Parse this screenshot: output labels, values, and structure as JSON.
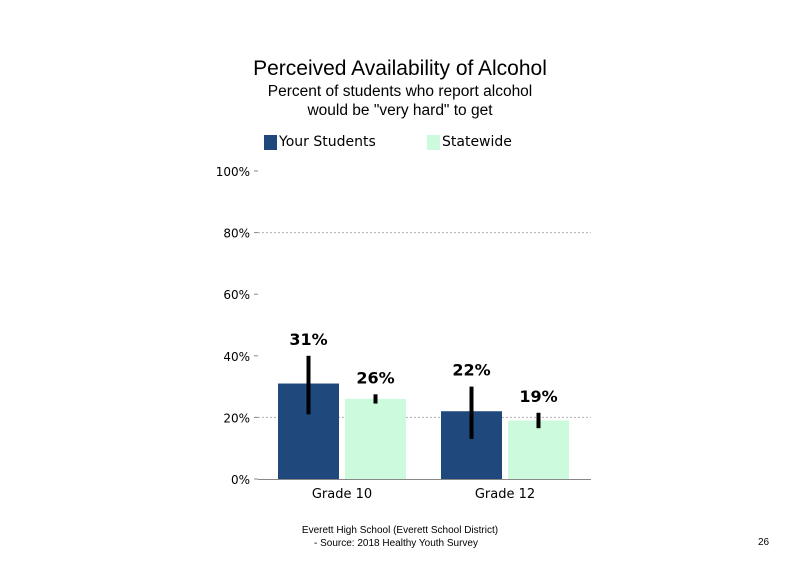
{
  "slide": {
    "title": "Perceived Availability of Alcohol",
    "subtitle_line1": "Percent of students who report alcohol",
    "subtitle_line2": "would be \"very hard\" to get",
    "footer_line1": "Everett High School (Everett School District)",
    "footer_line2": "- Source: 2018 Healthy Youth Survey",
    "page_number": "26"
  },
  "chart_data": {
    "type": "bar",
    "categories": [
      "Grade 10",
      "Grade 12"
    ],
    "series": [
      {
        "name": "Your Students",
        "color": "#1f497d",
        "values": [
          31,
          22
        ],
        "labels": [
          "31%",
          "22%"
        ],
        "error": [
          [
            21,
            40
          ],
          [
            13,
            30
          ]
        ]
      },
      {
        "name": "Statewide",
        "color": "#ccfadc",
        "values": [
          26,
          19
        ],
        "labels": [
          "26%",
          "19%"
        ],
        "error": [
          [
            24.5,
            27.5
          ],
          [
            16.5,
            21.5
          ]
        ]
      }
    ],
    "ylim": [
      0,
      100
    ],
    "yticks": [
      0,
      20,
      40,
      60,
      80,
      100
    ],
    "ytick_labels": [
      "0%",
      "20%",
      "40%",
      "60%",
      "80%",
      "100%"
    ],
    "gridlines_at": [
      20,
      80
    ],
    "legend_position": "top",
    "xlabel": "",
    "ylabel": ""
  }
}
